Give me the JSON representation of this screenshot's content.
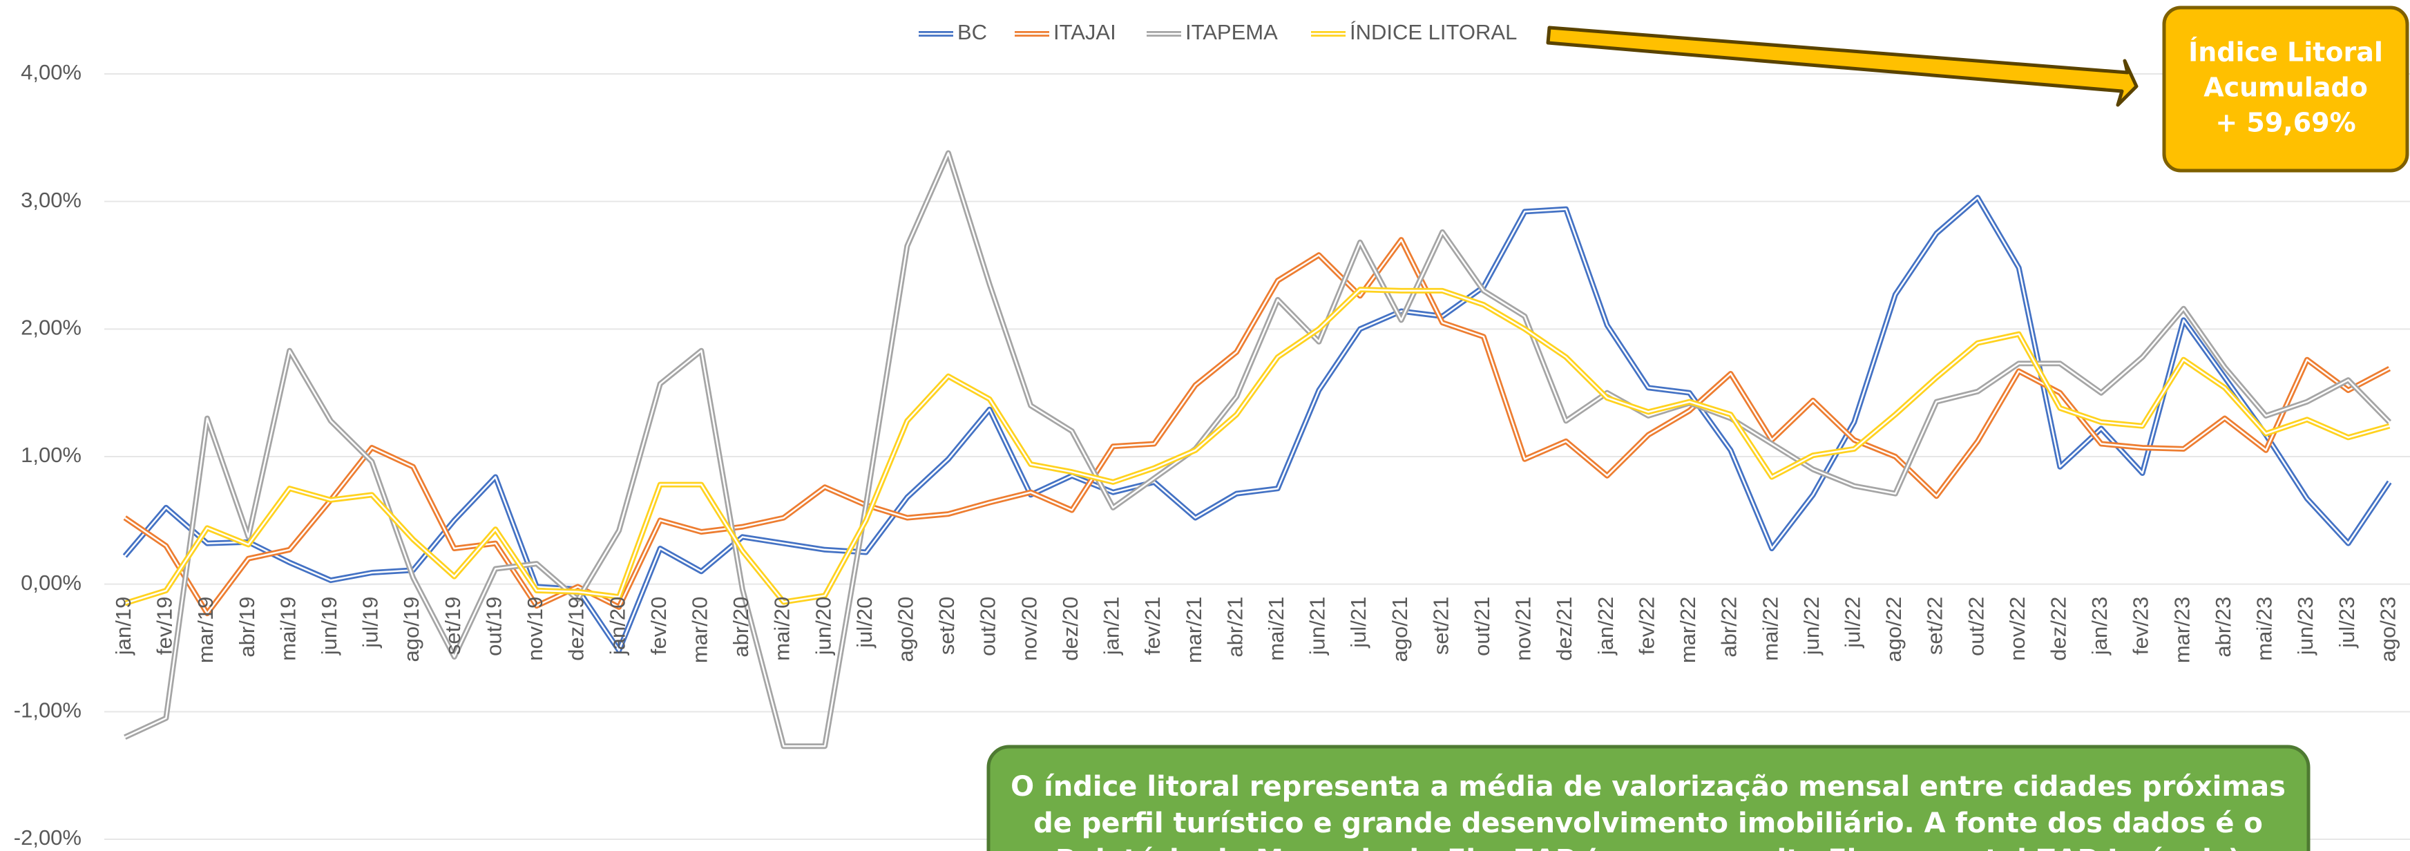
{
  "chart_data": {
    "type": "line",
    "categories": [
      "jan/19",
      "fev/19",
      "mar/19",
      "abr/19",
      "mai/19",
      "jun/19",
      "jul/19",
      "ago/19",
      "set/19",
      "out/19",
      "nov/19",
      "dez/19",
      "jan/20",
      "fev/20",
      "mar/20",
      "abr/20",
      "mai/20",
      "jun/20",
      "jul/20",
      "ago/20",
      "set/20",
      "out/20",
      "nov/20",
      "dez/20",
      "jan/21",
      "fev/21",
      "mar/21",
      "abr/21",
      "mai/21",
      "jun/21",
      "jul/21",
      "ago/21",
      "set/21",
      "out/21",
      "nov/21",
      "dez/21",
      "jan/22",
      "fev/22",
      "mar/22",
      "abr/22",
      "mai/22",
      "jun/22",
      "jul/22",
      "ago/22",
      "set/22",
      "out/22",
      "nov/22",
      "dez/22",
      "jan/23",
      "fev/23",
      "mar/23",
      "abr/23",
      "mai/23",
      "jun/23",
      "jul/23",
      "ago/23"
    ],
    "series": [
      {
        "name": "BC",
        "color": "#4472c4",
        "values": [
          0.22,
          0.6,
          0.32,
          0.33,
          0.17,
          0.03,
          0.09,
          0.11,
          0.5,
          0.84,
          -0.02,
          -0.04,
          -0.52,
          0.28,
          0.1,
          0.37,
          0.32,
          0.27,
          0.25,
          0.68,
          0.98,
          1.37,
          0.7,
          0.85,
          0.72,
          0.8,
          0.52,
          0.71,
          0.75,
          1.52,
          2.0,
          2.14,
          2.1,
          2.33,
          2.92,
          2.94,
          2.03,
          1.54,
          1.5,
          1.05,
          0.28,
          0.7,
          1.27,
          2.27,
          2.75,
          3.03,
          2.48,
          0.92,
          1.22,
          0.87,
          2.07,
          1.62,
          1.17,
          0.67,
          0.32,
          0.8
        ]
      },
      {
        "name": "ITAJAI",
        "color": "#ed7d31",
        "values": [
          0.52,
          0.3,
          -0.23,
          0.2,
          0.27,
          0.66,
          1.07,
          0.92,
          0.28,
          0.32,
          -0.17,
          -0.02,
          -0.18,
          0.5,
          0.41,
          0.45,
          0.52,
          0.76,
          0.62,
          0.52,
          0.55,
          0.64,
          0.72,
          0.58,
          1.08,
          1.1,
          1.56,
          1.82,
          2.38,
          2.58,
          2.26,
          2.7,
          2.05,
          1.94,
          0.98,
          1.12,
          0.85,
          1.17,
          1.36,
          1.65,
          1.13,
          1.44,
          1.13,
          1.0,
          0.69,
          1.12,
          1.67,
          1.5,
          1.1,
          1.07,
          1.06,
          1.3,
          1.05,
          1.76,
          1.52,
          1.69
        ]
      },
      {
        "name": "ITAPEMA",
        "color": "#a5a5a5",
        "values": [
          -1.2,
          -1.05,
          1.3,
          0.37,
          1.83,
          1.28,
          0.96,
          0.05,
          -0.57,
          0.12,
          0.16,
          -0.12,
          0.42,
          1.57,
          1.83,
          -0.04,
          -1.27,
          -1.27,
          0.62,
          2.65,
          3.38,
          2.35,
          1.4,
          1.2,
          0.6,
          0.83,
          1.06,
          1.47,
          2.23,
          1.9,
          2.68,
          2.07,
          2.76,
          2.3,
          2.1,
          1.28,
          1.5,
          1.32,
          1.42,
          1.3,
          1.1,
          0.9,
          0.77,
          0.71,
          1.43,
          1.51,
          1.73,
          1.73,
          1.5,
          1.78,
          2.16,
          1.7,
          1.32,
          1.43,
          1.6,
          1.27
        ]
      },
      {
        "name": "ÍNDICE LITORAL",
        "color": "#ffd21f",
        "values": [
          -0.15,
          -0.05,
          0.44,
          0.31,
          0.75,
          0.66,
          0.7,
          0.35,
          0.06,
          0.43,
          -0.05,
          -0.06,
          -0.1,
          0.78,
          0.78,
          0.26,
          -0.14,
          -0.09,
          0.5,
          1.28,
          1.63,
          1.45,
          0.94,
          0.88,
          0.8,
          0.91,
          1.05,
          1.33,
          1.78,
          2.0,
          2.31,
          2.3,
          2.3,
          2.19,
          2.0,
          1.78,
          1.46,
          1.35,
          1.43,
          1.33,
          0.84,
          1.01,
          1.06,
          1.33,
          1.62,
          1.89,
          1.96,
          1.38,
          1.27,
          1.24,
          1.76,
          1.54,
          1.18,
          1.29,
          1.15,
          1.24
        ]
      }
    ],
    "ylim": [
      -2,
      4
    ],
    "yticks": [
      {
        "value": -2,
        "label": "-2,00%"
      },
      {
        "value": -1,
        "label": "-1,00%"
      },
      {
        "value": 0,
        "label": "0,00%"
      },
      {
        "value": 1,
        "label": "1,00%"
      },
      {
        "value": 2,
        "label": "2,00%"
      },
      {
        "value": 3,
        "label": "3,00%"
      },
      {
        "value": 4,
        "label": "4,00%"
      }
    ],
    "grid": true,
    "legend": "top",
    "callout": [
      "Índice Litoral",
      "Acumulado",
      "+ 59,69%"
    ],
    "note": [
      "O índice litoral representa a média de valorização mensal entre cidades próximas",
      "de perfil turístico e grande desenvolvimento imobiliário. A fonte dos dados é o",
      "Relatório do Mercado da FipeZAP (acesso ao site Fipe e portal ZAP Imóveis)"
    ]
  }
}
